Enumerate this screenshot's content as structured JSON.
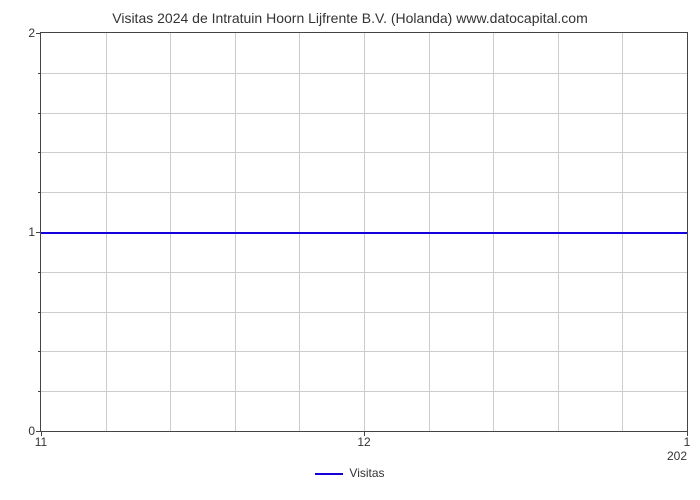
{
  "chart": {
    "type": "line",
    "title": "Visitas 2024 de Intratuin Hoorn Lijfrente B.V. (Holanda) www.datocapital.com",
    "title_fontsize": 14,
    "background_color": "#ffffff",
    "grid_color": "#cccccc",
    "axis_color": "#444444",
    "tick_fontsize": 12,
    "y": {
      "min": 0,
      "max": 2,
      "major_ticks": [
        0,
        1,
        2
      ],
      "minor_grid_count_between": 4
    },
    "x": {
      "min": 11,
      "max": 13,
      "major_ticks": [
        11,
        12,
        13
      ],
      "major_labels": [
        "11",
        "12",
        "1"
      ],
      "minor_grid_count_between": 4,
      "secondary_label": "202"
    },
    "series": {
      "name": "Visitas",
      "color": "#1400dc",
      "line_width": 2,
      "value": 1
    },
    "legend": {
      "label": "Visitas",
      "swatch_color": "#1400dc",
      "swatch_width": 2
    }
  }
}
